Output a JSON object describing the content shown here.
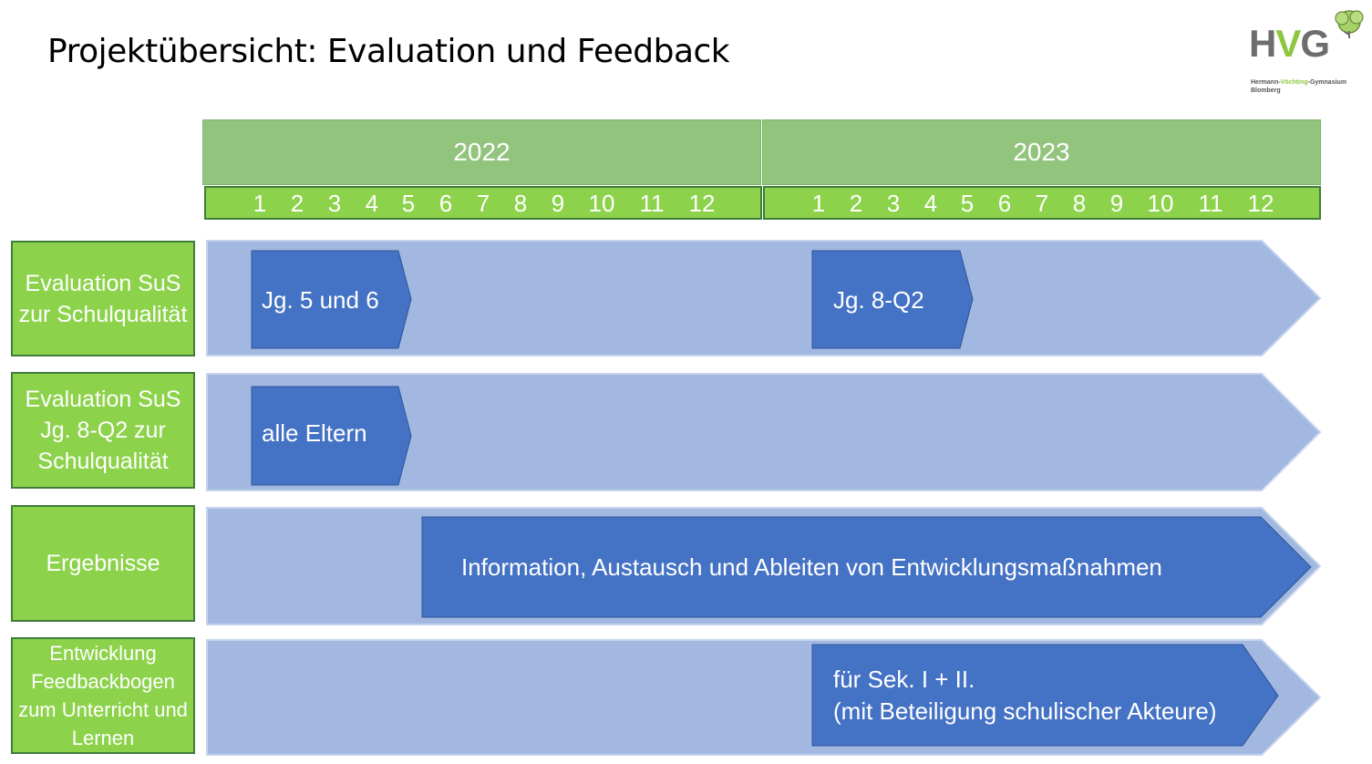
{
  "title": "Projektübersicht: Evaluation und Feedback",
  "logo": {
    "letters_left": "H",
    "letter_v": "V",
    "letters_right": "G",
    "school_part1": "Hermann-",
    "school_part2": "Vöchting",
    "school_part3": "-Gymnasium",
    "city": "Blomberg"
  },
  "timeline": {
    "years": [
      "2022",
      "2023"
    ],
    "months": [
      "1",
      "2",
      "3",
      "4",
      "5",
      "6",
      "7",
      "8",
      "9",
      "10",
      "11",
      "12"
    ]
  },
  "rows": [
    {
      "label": "Evaluation SuS zur Schulqualität"
    },
    {
      "label": "Evaluation SuS Jg. 8-Q2 zur Schulqualität"
    },
    {
      "label": "Ergebnisse"
    },
    {
      "label": "Entwicklung Feedbackbogen zum Unterricht und Lernen"
    }
  ],
  "bars": {
    "jg5und6": "Jg. 5 und 6",
    "jg8q2": "Jg. 8-Q2",
    "eltern": "alle Eltern",
    "information": "Information, Austausch und Ableiten von Entwicklungsmaßnahmen",
    "sek_line1": "für Sek. I + II.",
    "sek_line2": "(mit Beteiligung schulischer Akteure)"
  },
  "colors": {
    "lane": "#a3b8e0",
    "bar": "#4472c4",
    "label_green": "#8cd24a",
    "header_green": "#93c47d"
  }
}
